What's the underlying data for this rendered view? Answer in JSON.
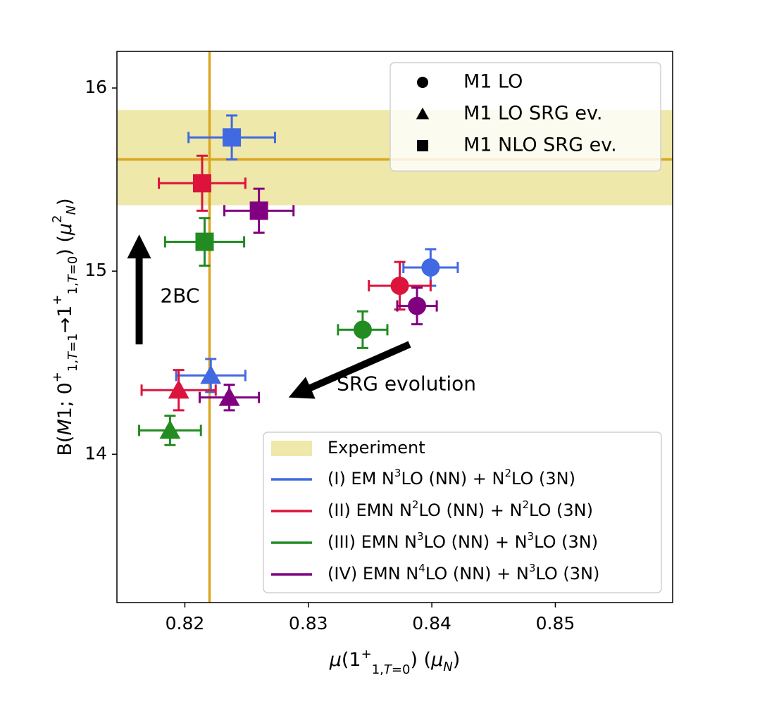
{
  "chart_data": {
    "type": "scatter",
    "xlabel": "μ(1⁺₁,T=0) (μN)",
    "ylabel": "B(M1; 0⁺₁,T=1→1⁺₁,T=0) (μN²)",
    "xlim": [
      0.8145,
      0.8595
    ],
    "ylim": [
      13.19,
      16.2
    ],
    "xticks": [
      0.82,
      0.83,
      0.84,
      0.85
    ],
    "xtick_labels": [
      "0.82",
      "0.83",
      "0.84",
      "0.85"
    ],
    "yticks": [
      14,
      15,
      16
    ],
    "ytick_labels": [
      "14",
      "15",
      "16"
    ],
    "experiment": {
      "label": "Experiment",
      "mu": 0.822,
      "B": 15.61,
      "B_band": [
        15.36,
        15.88
      ],
      "color": "#eee8aa",
      "line_color": "#daa520"
    },
    "marker_legend": [
      {
        "marker": "circle",
        "label": "M1 LO"
      },
      {
        "marker": "triangle",
        "label": "M1 LO SRG ev."
      },
      {
        "marker": "square",
        "label": "M1 NLO SRG ev."
      }
    ],
    "series": [
      {
        "name": "(I) EM N³LO (NN) + N²LO (3N)",
        "name_parts": [
          "(I) EM N",
          "3",
          "LO (NN) + N",
          "2",
          "LO (3N)"
        ],
        "color": "#4169e1",
        "points": [
          {
            "marker": "circle",
            "x": 0.8399,
            "y": 15.02,
            "xerr": 0.0022,
            "yerr": 0.1
          },
          {
            "marker": "triangle",
            "x": 0.8221,
            "y": 14.43,
            "xerr": 0.0028,
            "yerr": 0.09
          },
          {
            "marker": "square",
            "x": 0.8238,
            "y": 15.73,
            "xerr": 0.0035,
            "yerr": 0.12
          }
        ]
      },
      {
        "name": "(II) EMN N²LO (NN) + N²LO (3N)",
        "name_parts": [
          "(II) EMN N",
          "2",
          "LO (NN) + N",
          "2",
          "LO (3N)"
        ],
        "color": "#dc143c",
        "points": [
          {
            "marker": "circle",
            "x": 0.8374,
            "y": 14.92,
            "xerr": 0.0025,
            "yerr": 0.13
          },
          {
            "marker": "triangle",
            "x": 0.8195,
            "y": 14.35,
            "xerr": 0.003,
            "yerr": 0.11
          },
          {
            "marker": "square",
            "x": 0.8214,
            "y": 15.48,
            "xerr": 0.0035,
            "yerr": 0.15
          }
        ]
      },
      {
        "name": "(III) EMN N³LO (NN) + N³LO (3N)",
        "name_parts": [
          "(III) EMN N",
          "3",
          "LO (NN) + N",
          "3",
          "LO (3N)"
        ],
        "color": "#228b22",
        "points": [
          {
            "marker": "circle",
            "x": 0.8344,
            "y": 14.68,
            "xerr": 0.002,
            "yerr": 0.1
          },
          {
            "marker": "triangle",
            "x": 0.8188,
            "y": 14.13,
            "xerr": 0.0025,
            "yerr": 0.08
          },
          {
            "marker": "square",
            "x": 0.8216,
            "y": 15.16,
            "xerr": 0.0032,
            "yerr": 0.13
          }
        ]
      },
      {
        "name": "(IV) EMN N⁴LO (NN) + N³LO (3N)",
        "name_parts": [
          "(IV) EMN N",
          "4",
          "LO (NN) + N",
          "3",
          "LO (3N)"
        ],
        "color": "#800080",
        "points": [
          {
            "marker": "circle",
            "x": 0.8388,
            "y": 14.81,
            "xerr": 0.0016,
            "yerr": 0.1
          },
          {
            "marker": "triangle",
            "x": 0.8236,
            "y": 14.31,
            "xerr": 0.0024,
            "yerr": 0.07
          },
          {
            "marker": "square",
            "x": 0.826,
            "y": 15.33,
            "xerr": 0.0028,
            "yerr": 0.12
          }
        ]
      }
    ],
    "annotations": [
      {
        "text": "2BC",
        "arrow_from": [
          0.8163,
          14.6
        ],
        "arrow_to": [
          0.8163,
          15.2
        ],
        "text_at": [
          0.818,
          14.86
        ]
      },
      {
        "text": "SRG evolution",
        "arrow_from": [
          0.8382,
          14.6
        ],
        "arrow_to": [
          0.8284,
          14.31
        ],
        "text_at": [
          0.8323,
          14.38
        ]
      }
    ],
    "legend_placement": [
      "top-right",
      "bottom-right"
    ],
    "grid": false
  }
}
